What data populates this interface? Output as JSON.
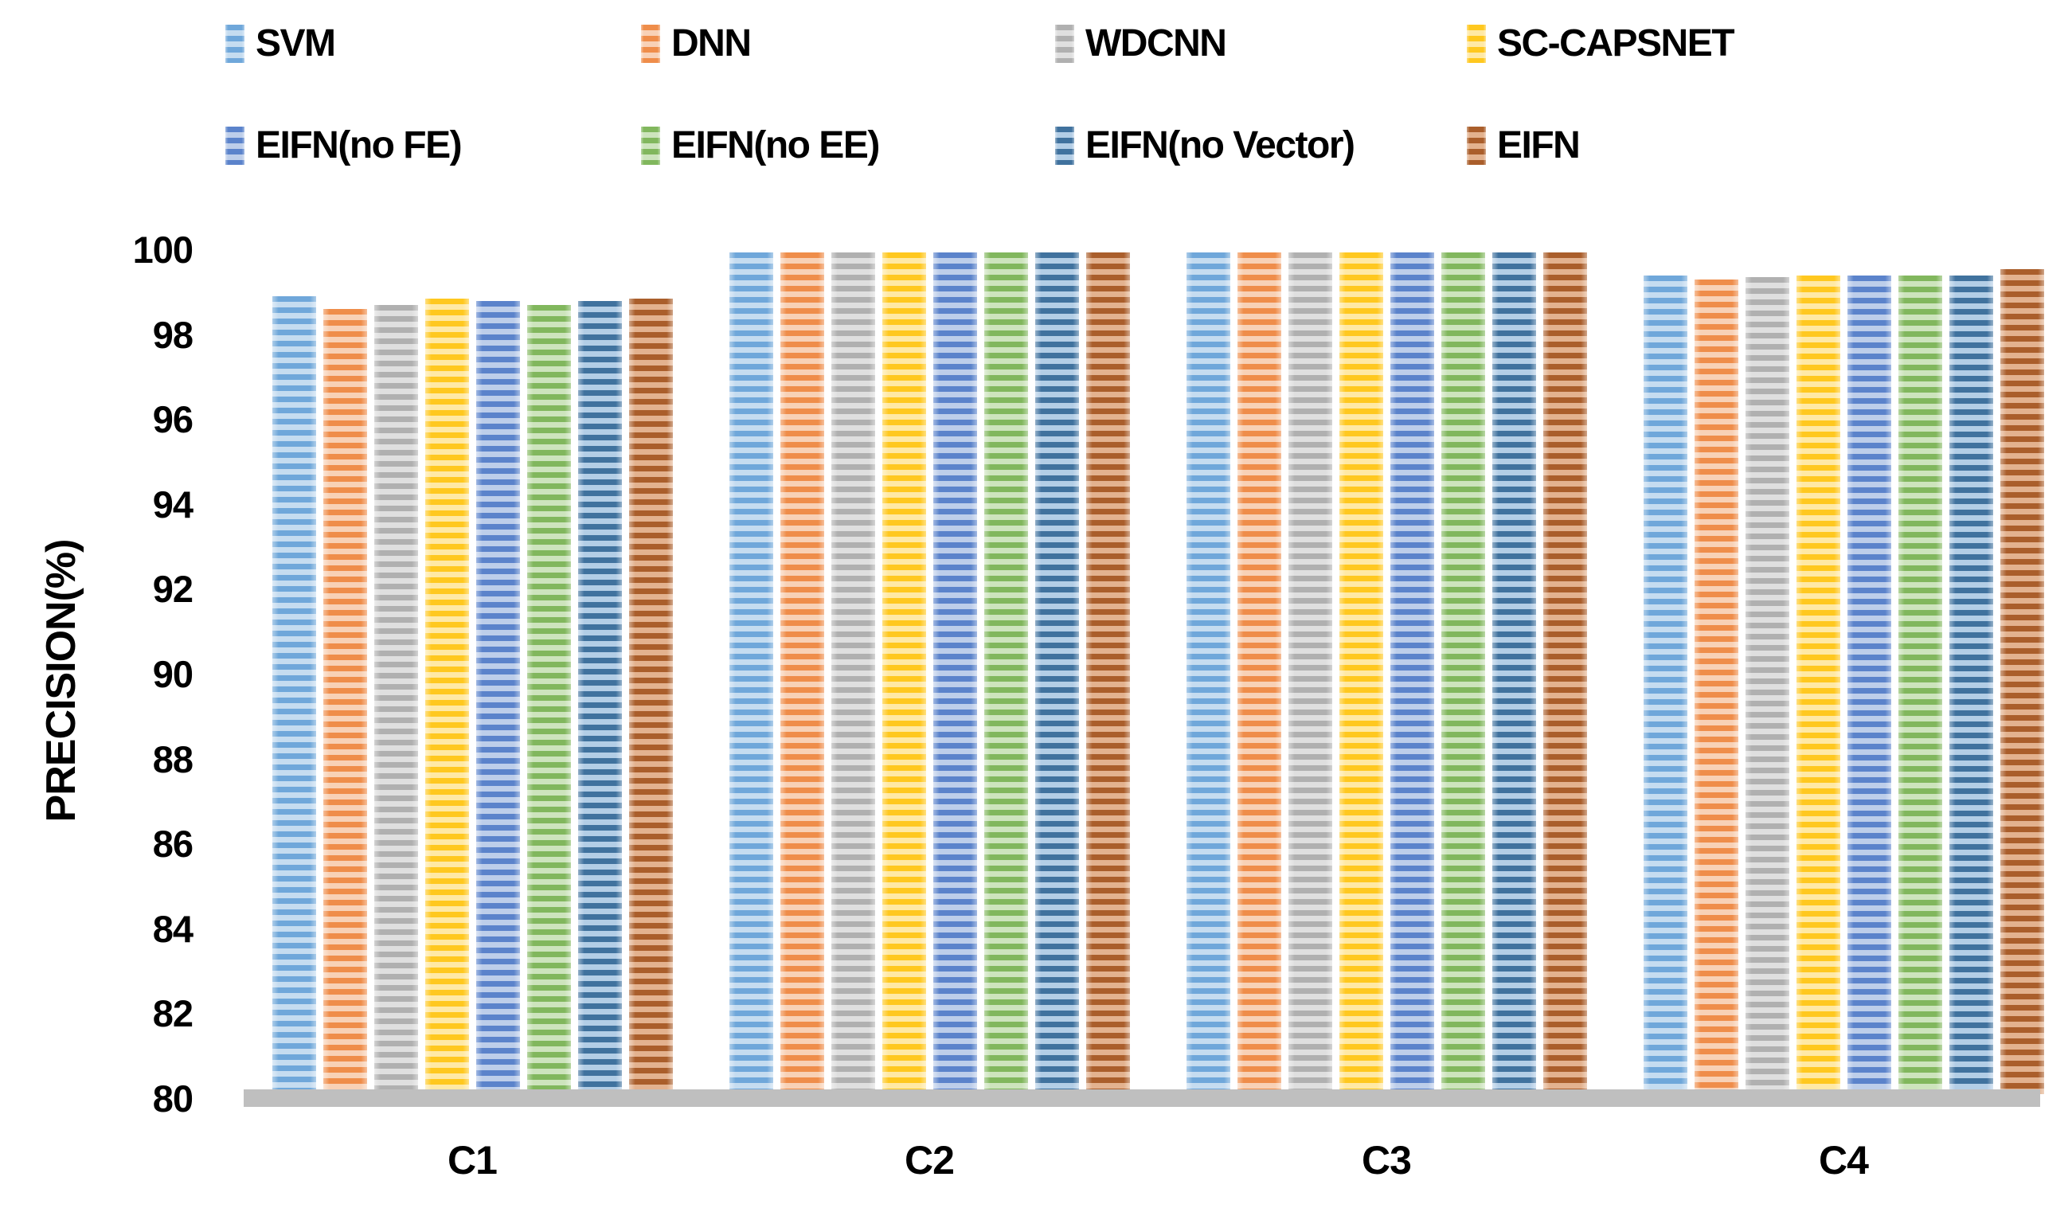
{
  "chart_data": {
    "type": "bar",
    "title": "",
    "xlabel": "",
    "ylabel": "PRECISION(%)",
    "ylim": [
      80,
      100
    ],
    "yticks": [
      100,
      98,
      96,
      94,
      92,
      90,
      88,
      86,
      84,
      82,
      80
    ],
    "grid": false,
    "legend_position": "top-two-rows",
    "bar_style": "horizontal-stripes",
    "axis_line_color": "#BFBFBF",
    "categories": [
      "C1",
      "C2",
      "C3",
      "C4"
    ],
    "series": [
      {
        "name": "SVM",
        "color": "#5B9BD5",
        "tint": "#BDD7EE",
        "values": [
          98.9,
          99.95,
          99.95,
          99.4
        ]
      },
      {
        "name": "DNN",
        "color": "#ED7D31",
        "tint": "#F7CBAC",
        "values": [
          98.6,
          99.95,
          99.95,
          99.3
        ]
      },
      {
        "name": "WDCNN",
        "color": "#A5A5A5",
        "tint": "#DBDBDB",
        "values": [
          98.7,
          99.95,
          99.95,
          99.35
        ]
      },
      {
        "name": "SC-CAPSNET",
        "color": "#FFC000",
        "tint": "#FFE699",
        "values": [
          98.85,
          99.95,
          99.95,
          99.4
        ]
      },
      {
        "name": "EIFN(no FE)",
        "color": "#4472C4",
        "tint": "#B4C7E7",
        "values": [
          98.8,
          99.95,
          99.95,
          99.4
        ]
      },
      {
        "name": "EIFN(no EE)",
        "color": "#70AD47",
        "tint": "#C6E0B4",
        "values": [
          98.7,
          99.95,
          99.95,
          99.4
        ]
      },
      {
        "name": "EIFN(no Vector)",
        "color": "#255E91",
        "tint": "#A9C7E3",
        "values": [
          98.8,
          99.95,
          99.95,
          99.4
        ]
      },
      {
        "name": "EIFN",
        "color": "#9E480E",
        "tint": "#DFA77F",
        "values": [
          98.85,
          99.95,
          99.95,
          99.55
        ]
      }
    ]
  }
}
